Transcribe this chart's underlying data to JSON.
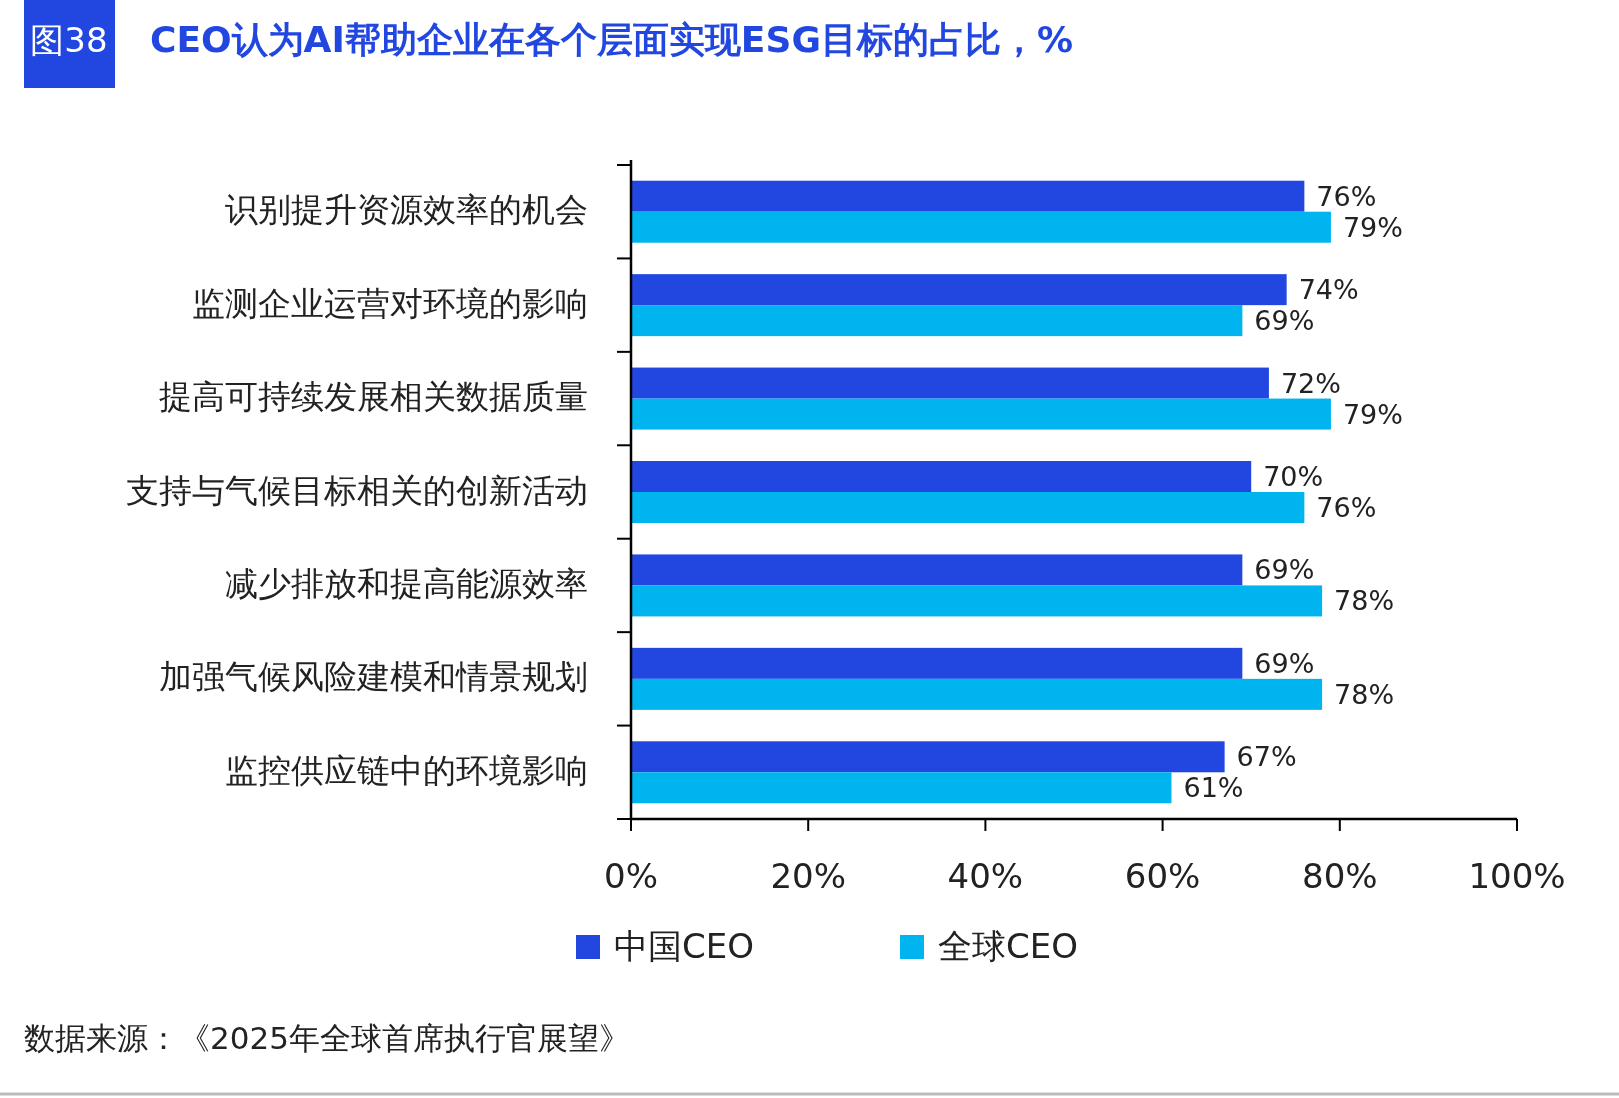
{
  "chart_data": {
    "type": "bar",
    "orientation": "horizontal",
    "title": "CEO认为AI帮助企业在各个层面实现ESG目标的占比，%",
    "annotations": [
      "图38",
      "数据来源：《2025年全球首席执行官展望》"
    ],
    "categories": [
      "识别提升资源效率的机会",
      "监测企业运营对环境的影响",
      "提高可持续发展相关数据质量",
      "支持与气候目标相关的创新活动",
      "减少排放和提高能源效率",
      "加强气候风险建模和情景规划",
      "监控供应链中的环境影响"
    ],
    "series": [
      {
        "name": "中国CEO",
        "color": "#2247e0",
        "values": [
          76,
          74,
          72,
          70,
          69,
          69,
          67
        ],
        "value_labels": [
          "76%",
          "74%",
          "72%",
          "70%",
          "69%",
          "69%",
          "67%"
        ]
      },
      {
        "name": "全球CEO",
        "color": "#00b4f0",
        "values": [
          79,
          69,
          79,
          76,
          78,
          78,
          61
        ],
        "value_labels": [
          "79%",
          "69%",
          "79%",
          "76%",
          "78%",
          "78%",
          "61%"
        ]
      }
    ],
    "xlim": [
      0,
      100
    ],
    "xticks": [
      {
        "value": 0,
        "label": "0%"
      },
      {
        "value": 20,
        "label": "20%"
      },
      {
        "value": 40,
        "label": "40%"
      },
      {
        "value": 60,
        "label": "60%"
      },
      {
        "value": 80,
        "label": "80%"
      },
      {
        "value": 100,
        "label": "100%"
      }
    ],
    "grid": false,
    "legend": "bottom"
  }
}
